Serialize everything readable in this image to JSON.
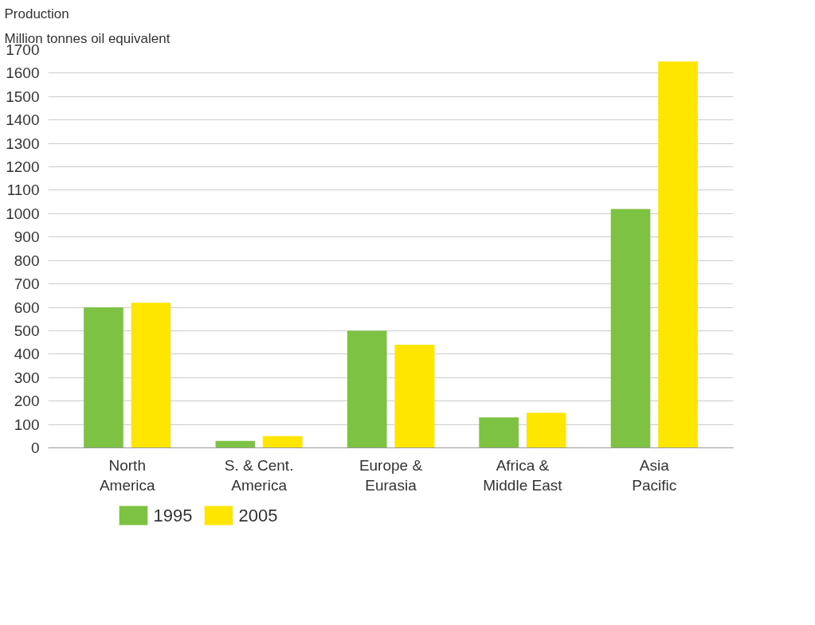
{
  "chart_data": {
    "type": "bar",
    "title": "Production",
    "ylabel": "Million tonnes oil equivalent",
    "categories": [
      "North\nAmerica",
      "S. & Cent.\nAmerica",
      "Europe &\nEurasia",
      "Africa &\nMiddle East",
      "Asia\nPacific"
    ],
    "series": [
      {
        "name": "1995",
        "color": "#7dc242",
        "values": [
          600,
          30,
          500,
          130,
          1020
        ]
      },
      {
        "name": "2005",
        "color": "#ffe600",
        "values": [
          620,
          50,
          440,
          150,
          1650
        ]
      }
    ],
    "ylim": [
      0,
      1700
    ],
    "yticks": [
      0,
      100,
      200,
      300,
      400,
      500,
      600,
      700,
      800,
      900,
      1000,
      1100,
      1200,
      1300,
      1400,
      1500,
      1600,
      1700
    ],
    "grid": "y",
    "legend": "bottom"
  }
}
